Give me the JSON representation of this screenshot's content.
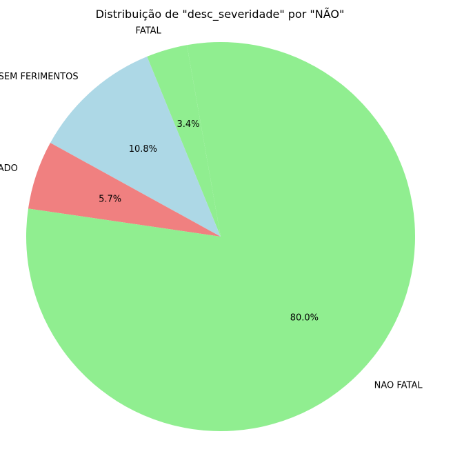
{
  "chart_data": {
    "type": "pie",
    "title": "Distribuição de \"desc_severidade\" por \"NÃO\"",
    "slices": [
      {
        "label": "FATAL",
        "value": 3.4,
        "pct_label": "3.4%",
        "color": "#90ee90"
      },
      {
        "label": "SEM FERIMENTOS",
        "value": 10.8,
        "pct_label": "10.8%",
        "color": "#add8e6"
      },
      {
        "label": "NAO INFORMADO",
        "value": 5.7,
        "pct_label": "5.7%",
        "color": "#f08080"
      },
      {
        "label": "NAO FATAL",
        "value": 80.0,
        "pct_label": "80.0%",
        "color": "#90ee90"
      }
    ],
    "legend": "none"
  }
}
